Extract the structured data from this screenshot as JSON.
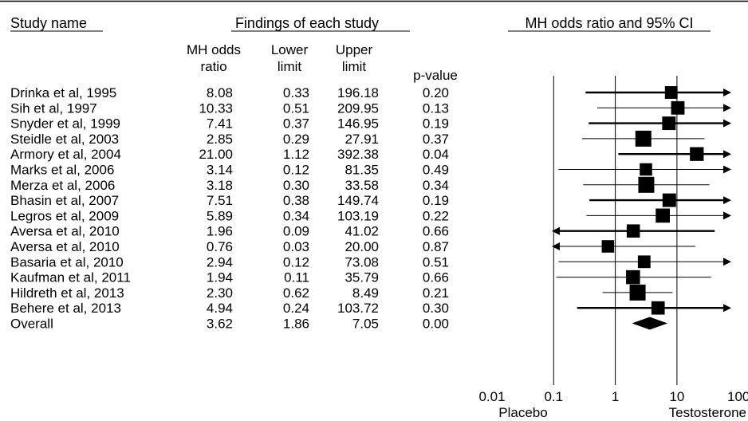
{
  "chart_data": {
    "type": "forest",
    "headers": {
      "study_name": "Study name",
      "findings": "Findings of each study",
      "plot_title": "MH odds ratio and 95% CI"
    },
    "columns": {
      "or": [
        "MH odds",
        "ratio"
      ],
      "lower": [
        "Lower",
        "limit"
      ],
      "upper": [
        "Upper",
        "limit"
      ],
      "p": [
        "p-value"
      ]
    },
    "rows": [
      {
        "study": "Drinka et al, 1995",
        "or": "8.08",
        "lower": "0.33",
        "upper": "196.18",
        "p": "0.20",
        "thick": true
      },
      {
        "study": "Sih et al, 1997",
        "or": "10.33",
        "lower": "0.51",
        "upper": "209.95",
        "p": "0.13",
        "thick": false
      },
      {
        "study": "Snyder et al, 1999",
        "or": "7.41",
        "lower": "0.37",
        "upper": "146.95",
        "p": "0.19",
        "thick": true
      },
      {
        "study": "Steidle et al, 2003",
        "or": "2.85",
        "lower": "0.29",
        "upper": "27.91",
        "p": "0.37",
        "thick": false
      },
      {
        "study": "Armory et al, 2004",
        "or": "21.00",
        "lower": "1.12",
        "upper": "392.38",
        "p": "0.04",
        "thick": true
      },
      {
        "study": "Marks et al, 2006",
        "or": "3.14",
        "lower": "0.12",
        "upper": "81.35",
        "p": "0.49",
        "thick": false
      },
      {
        "study": "Merza et al, 2006",
        "or": "3.18",
        "lower": "0.30",
        "upper": "33.58",
        "p": "0.34",
        "thick": false
      },
      {
        "study": "Bhasin et al, 2007",
        "or": "7.51",
        "lower": "0.38",
        "upper": "149.74",
        "p": "0.19",
        "thick": true
      },
      {
        "study": "Legros et al, 2009",
        "or": "5.89",
        "lower": "0.34",
        "upper": "103.19",
        "p": "0.22",
        "thick": false
      },
      {
        "study": "Aversa et al, 2010",
        "or": "1.96",
        "lower": "0.09",
        "upper": "41.02",
        "p": "0.66",
        "thick": true
      },
      {
        "study": "Aversa et al, 2010",
        "or": "0.76",
        "lower": "0.03",
        "upper": "20.00",
        "p": "0.87",
        "thick": false
      },
      {
        "study": "Basaria et al, 2010",
        "or": "2.94",
        "lower": "0.12",
        "upper": "73.08",
        "p": "0.51",
        "thick": false
      },
      {
        "study": "Kaufman et al, 2011",
        "or": "1.94",
        "lower": "0.11",
        "upper": "35.79",
        "p": "0.66",
        "thick": false
      },
      {
        "study": "Hildreth et al, 2013",
        "or": "2.30",
        "lower": "0.62",
        "upper": "8.49",
        "p": "0.21",
        "thick": false
      },
      {
        "study": "Behere et al, 2013",
        "or": "4.94",
        "lower": "0.24",
        "upper": "103.72",
        "p": "0.30",
        "thick": true
      },
      {
        "study": "Overall",
        "or": "3.62",
        "lower": "1.86",
        "upper": "7.05",
        "p": "0.00",
        "overall": true
      }
    ],
    "axis": {
      "scale": "log",
      "range": [
        0.01,
        100
      ],
      "ticks": [
        0.01,
        0.1,
        1,
        10,
        100
      ],
      "tick_labels": [
        "0.01",
        "0.1",
        "1",
        "10",
        "100"
      ],
      "left_label": "Placebo",
      "right_label": "Testosterone",
      "clip_range": [
        0.1,
        100
      ]
    }
  }
}
